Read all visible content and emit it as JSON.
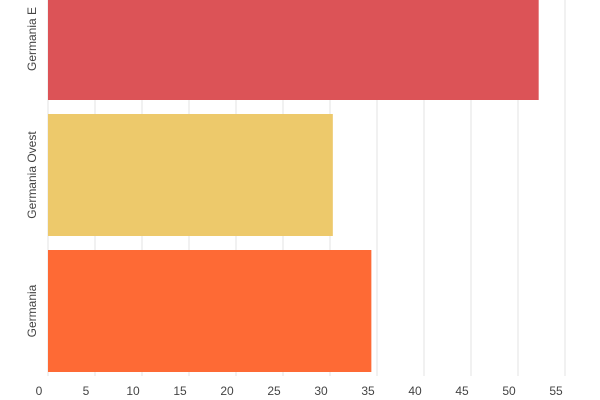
{
  "chart_data": {
    "type": "bar",
    "orientation": "horizontal",
    "categories": [
      "Germania E",
      "Germania Ovest",
      "Germania"
    ],
    "values": [
      52.2,
      30.3,
      34.4
    ],
    "colors": [
      "#dc5357",
      "#edc96b",
      "#fe6a35"
    ],
    "xlim": [
      0,
      55
    ],
    "xticks": [
      0,
      5,
      10,
      15,
      20,
      25,
      30,
      35,
      40,
      45,
      50,
      55
    ],
    "grid": true
  }
}
